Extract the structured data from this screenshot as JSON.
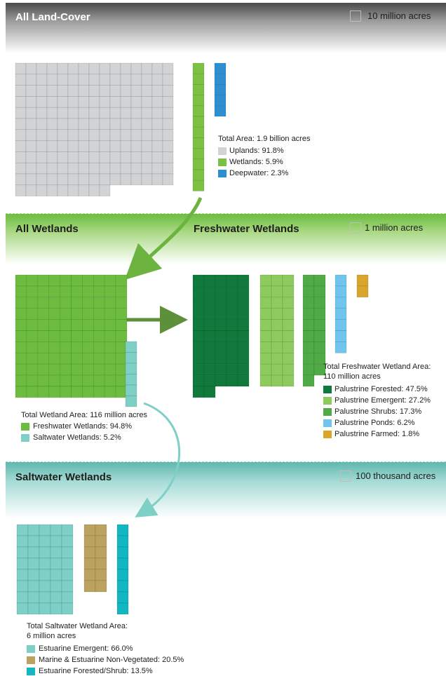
{
  "sections": {
    "land_cover": {
      "title": "All Land-Cover",
      "scale_label": "10 million acres"
    },
    "wetlands": {
      "title": "All Wetlands"
    },
    "freshwater": {
      "title": "Freshwater Wetlands",
      "scale_label": "1 million acres"
    },
    "saltwater": {
      "title": "Saltwater Wetlands",
      "scale_label": "100 thousand acres"
    }
  },
  "colors": {
    "uplands": "#d2d3d5",
    "wetlands": "#7cc242",
    "deepwater": "#2e8fd0",
    "freshwater": "#6cbc3f",
    "saltwater": "#7ecfc6",
    "palustrine_forested": "#0f7a3c",
    "palustrine_emergent": "#8ccb5c",
    "palustrine_shrubs": "#4fab45",
    "palustrine_ponds": "#70c4ee",
    "palustrine_farmed": "#d9a62b",
    "estuarine_emergent": "#7ecfc6",
    "marine_non_vegetated": "#bba35f",
    "estuarine_forested_shrub": "#12b7c2"
  },
  "chart_data": [
    {
      "type": "waffle",
      "title": "All Land-Cover",
      "unit_label": "10 million acres",
      "total_label": "Total Area: 1.9 billion acres",
      "series": [
        {
          "name": "Uplands: 91.8%",
          "percent": 91.8,
          "cells": 174
        },
        {
          "name": "Wetlands: 5.9%",
          "percent": 5.9,
          "cells": 12
        },
        {
          "name": "Deepwater: 2.3%",
          "percent": 2.3,
          "cells": 5
        }
      ]
    },
    {
      "type": "waffle",
      "title": "All Wetlands",
      "total_label": "Total Wetland Area: 116 million acres",
      "series": [
        {
          "name": "Freshwater Wetlands: 94.8%",
          "percent": 94.8,
          "cells": 110
        },
        {
          "name": "Saltwater Wetlands: 5.2%",
          "percent": 5.2,
          "cells": 6
        }
      ]
    },
    {
      "type": "waffle",
      "title": "Freshwater Wetlands",
      "unit_label": "1 million acres",
      "total_label_line1": "Total Freshwater Wetland Area:",
      "total_label_line2": "110 million acres",
      "series": [
        {
          "name": "Palustrine Forested: 47.5%",
          "percent": 47.5,
          "cells": 52
        },
        {
          "name": "Palustrine Emergent: 27.2%",
          "percent": 27.2,
          "cells": 30
        },
        {
          "name": "Palustrine Shrubs: 17.3%",
          "percent": 17.3,
          "cells": 19
        },
        {
          "name": "Palustrine Ponds: 6.2%",
          "percent": 6.2,
          "cells": 7
        },
        {
          "name": "Palustrine Farmed: 1.8%",
          "percent": 1.8,
          "cells": 2
        }
      ]
    },
    {
      "type": "waffle",
      "title": "Saltwater Wetlands",
      "unit_label": "100 thousand acres",
      "total_label_line1": "Total Saltwater Wetland Area:",
      "total_label_line2": "6 million acres",
      "series": [
        {
          "name": "Estuarine Emergent: 66.0%",
          "percent": 66.0,
          "cells": 40
        },
        {
          "name": "Marine & Estuarine Non-Vegetated: 20.5%",
          "percent": 20.5,
          "cells": 12
        },
        {
          "name": "Estuarine Forested/Shrub: 13.5%",
          "percent": 13.5,
          "cells": 8
        }
      ]
    }
  ]
}
